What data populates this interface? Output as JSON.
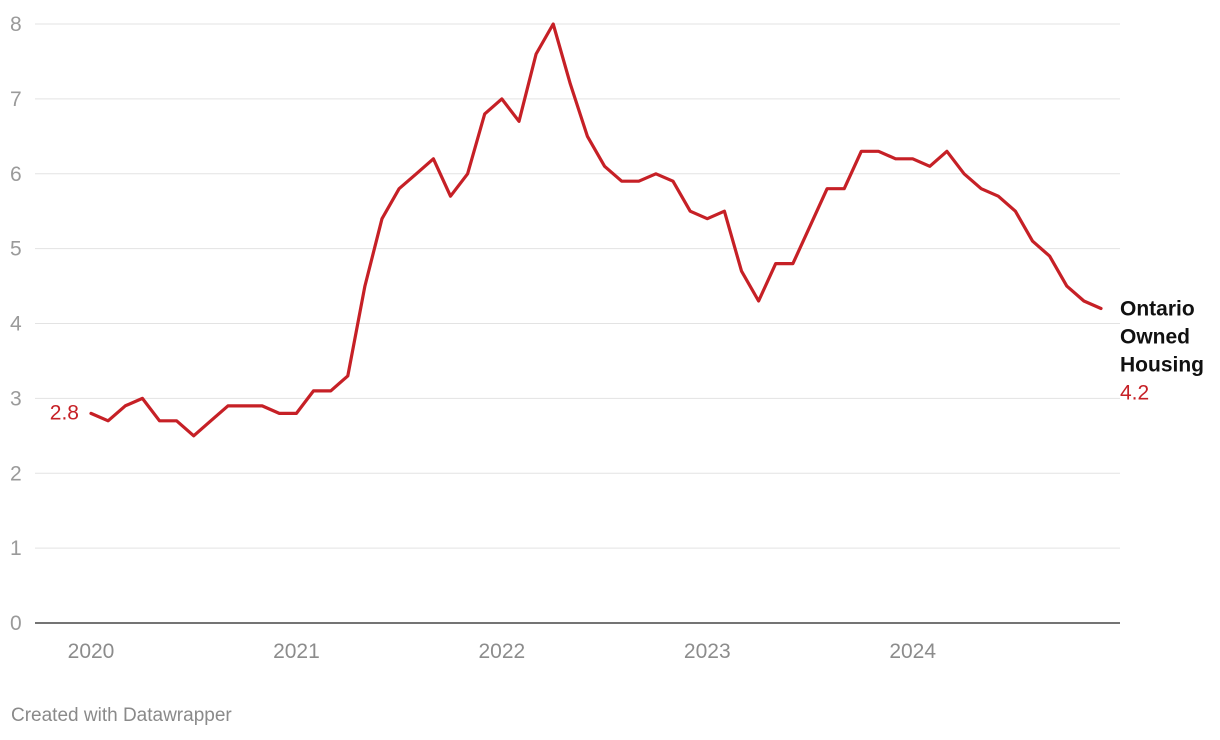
{
  "chart_data": {
    "type": "line",
    "x": [
      "2020-01",
      "2020-02",
      "2020-03",
      "2020-04",
      "2020-05",
      "2020-06",
      "2020-07",
      "2020-08",
      "2020-09",
      "2020-10",
      "2020-11",
      "2020-12",
      "2021-01",
      "2021-02",
      "2021-03",
      "2021-04",
      "2021-05",
      "2021-06",
      "2021-07",
      "2021-08",
      "2021-09",
      "2021-10",
      "2021-11",
      "2021-12",
      "2022-01",
      "2022-02",
      "2022-03",
      "2022-04",
      "2022-05",
      "2022-06",
      "2022-07",
      "2022-08",
      "2022-09",
      "2022-10",
      "2022-11",
      "2022-12",
      "2023-01",
      "2023-02",
      "2023-03",
      "2023-04",
      "2023-05",
      "2023-06",
      "2023-07",
      "2023-08",
      "2023-09",
      "2023-10",
      "2023-11",
      "2023-12",
      "2024-01",
      "2024-02",
      "2024-03",
      "2024-04",
      "2024-05",
      "2024-06",
      "2024-07",
      "2024-08",
      "2024-09",
      "2024-10",
      "2024-11",
      "2024-12"
    ],
    "series": [
      {
        "name": "Ontario Owned Housing",
        "name_lines": [
          "Ontario",
          "Owned",
          "Housing"
        ],
        "color": "#c62026",
        "values": [
          2.8,
          2.7,
          2.9,
          3.0,
          2.7,
          2.7,
          2.5,
          2.7,
          2.9,
          2.9,
          2.9,
          2.8,
          2.8,
          3.1,
          3.1,
          3.3,
          4.5,
          5.4,
          5.8,
          6.0,
          6.2,
          5.7,
          6.0,
          6.8,
          7.0,
          6.7,
          7.6,
          8.0,
          7.2,
          6.5,
          6.1,
          5.9,
          5.9,
          6.0,
          5.9,
          5.5,
          5.4,
          5.5,
          4.7,
          4.3,
          4.8,
          4.8,
          5.3,
          5.8,
          5.8,
          6.3,
          6.3,
          6.2,
          6.2,
          6.1,
          6.3,
          6.0,
          5.8,
          5.7,
          5.5,
          5.1,
          4.9,
          4.5,
          4.3,
          4.2
        ],
        "start_label": "2.8",
        "end_label": "4.2"
      }
    ],
    "x_ticks": [
      "2020",
      "2021",
      "2022",
      "2023",
      "2024"
    ],
    "y_ticks": [
      "0",
      "1",
      "2",
      "3",
      "4",
      "5",
      "6",
      "7",
      "8"
    ],
    "ylim": [
      0,
      8
    ],
    "grid": true,
    "legend": "direct label at line end"
  },
  "footer": {
    "credit": "Created with Datawrapper"
  }
}
